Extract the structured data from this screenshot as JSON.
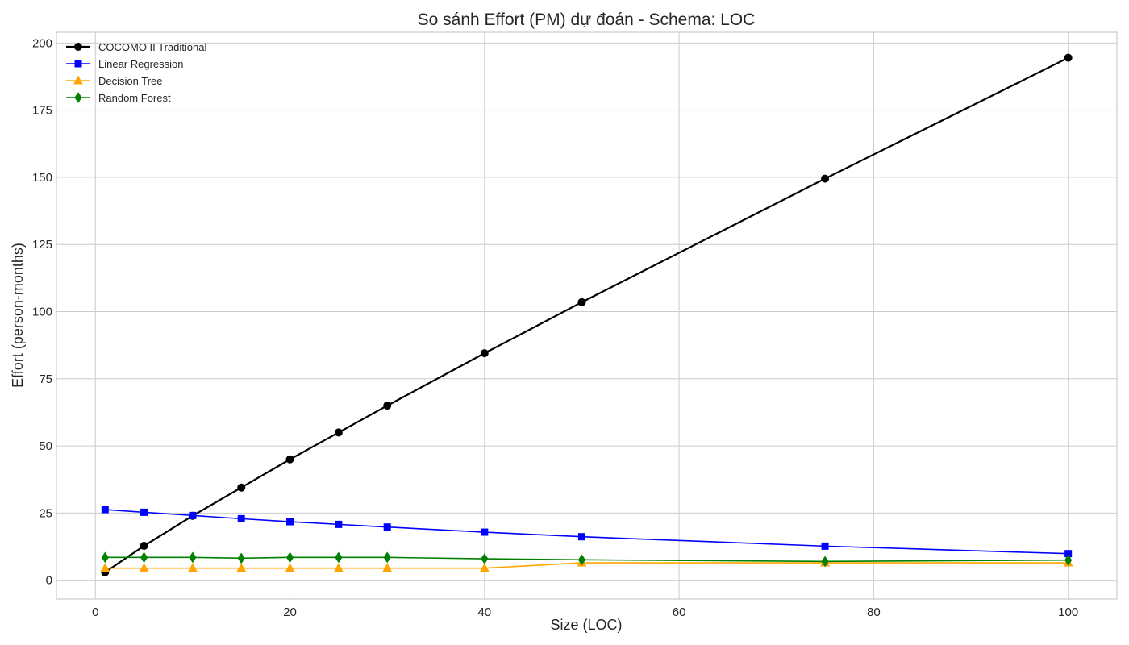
{
  "chart_data": {
    "type": "line",
    "title": "So sánh Effort (PM) dự đoán - Schema: LOC",
    "xlabel": "Size (LOC)",
    "ylabel": "Effort (person-months)",
    "xlim": [
      -4,
      105
    ],
    "ylim": [
      -7,
      204
    ],
    "xticks": [
      0,
      20,
      40,
      60,
      80,
      100
    ],
    "yticks": [
      0,
      25,
      50,
      75,
      100,
      125,
      150,
      175,
      200
    ],
    "grid": true,
    "legend_position": "top-left",
    "x": [
      1,
      5,
      10,
      15,
      20,
      25,
      30,
      40,
      50,
      75,
      100
    ],
    "series": [
      {
        "name": "COCOMO II Traditional",
        "color": "#000000",
        "marker": "circle",
        "line_width": 2.2,
        "values": [
          3,
          12.8,
          24,
          34.5,
          45,
          55,
          65,
          84.5,
          103.5,
          149.5,
          194.5
        ]
      },
      {
        "name": "Linear Regression",
        "color": "#0000ff",
        "marker": "square",
        "line_width": 1.6,
        "values": [
          26.3,
          25.3,
          24.1,
          22.9,
          21.8,
          20.8,
          19.8,
          17.9,
          16.2,
          12.7,
          9.9
        ]
      },
      {
        "name": "Decision Tree",
        "color": "#ffa500",
        "marker": "triangle",
        "line_width": 1.6,
        "values": [
          4.5,
          4.5,
          4.5,
          4.5,
          4.5,
          4.5,
          4.5,
          4.5,
          6.5,
          6.5,
          6.5
        ]
      },
      {
        "name": "Random Forest",
        "color": "#008000",
        "marker": "diamond",
        "line_width": 1.6,
        "values": [
          8.5,
          8.5,
          8.5,
          8.2,
          8.5,
          8.5,
          8.5,
          8,
          7.6,
          7,
          7.5
        ]
      }
    ]
  }
}
